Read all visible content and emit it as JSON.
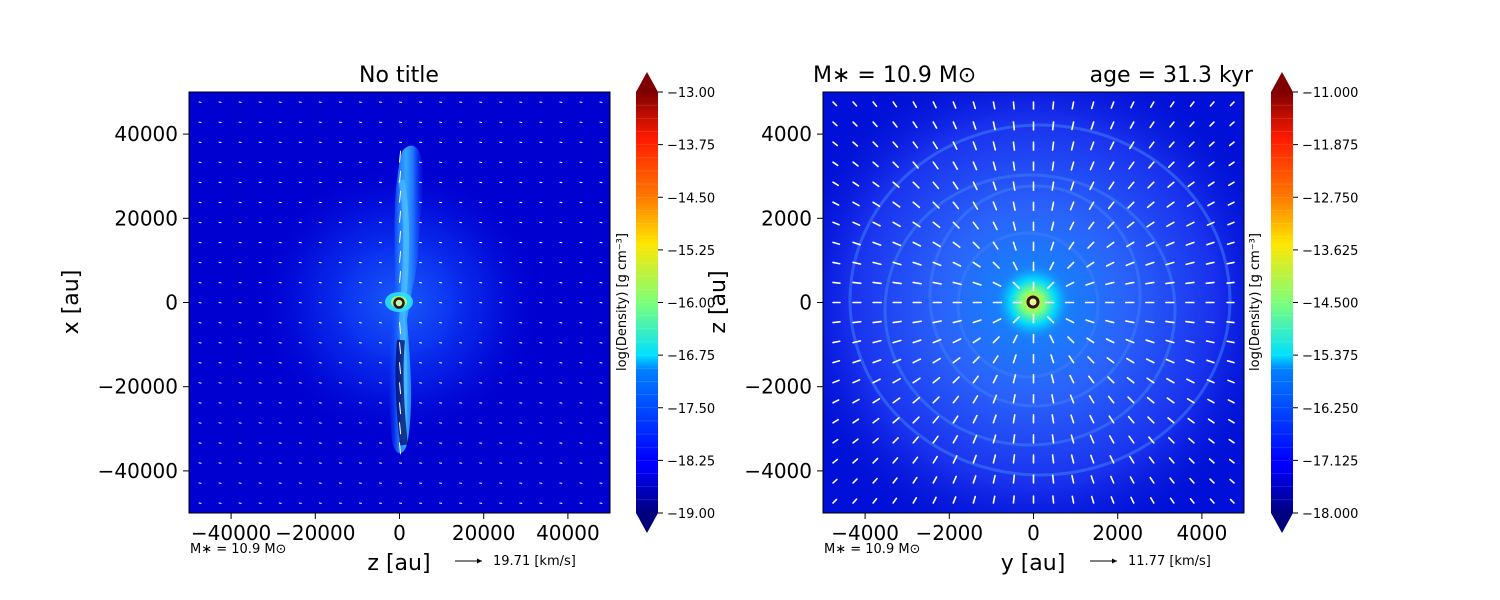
{
  "chart_data": [
    {
      "type": "heatmap",
      "title": "No title",
      "xlabel": "z [au]",
      "ylabel": "x [au]",
      "xlim": [
        -50000,
        50000
      ],
      "ylim": [
        -50000,
        50000
      ],
      "xticks": [
        "−40000",
        "−20000",
        "0",
        "20000",
        "40000"
      ],
      "xtick_values": [
        -40000,
        -20000,
        0,
        20000,
        40000
      ],
      "yticks": [
        "40000",
        "20000",
        "0",
        "−20000",
        "−40000"
      ],
      "ytick_values": [
        40000,
        20000,
        0,
        -20000,
        -40000
      ],
      "colorbar": {
        "label": "log(Density) [g cm⁻³]",
        "range": [
          -19.0,
          -13.0
        ],
        "ticks": [
          "−13.00",
          "−13.75",
          "−14.50",
          "−15.25",
          "−16.00",
          "−16.75",
          "−17.50",
          "−18.25",
          "−19.00"
        ],
        "tick_values": [
          -13.0,
          -13.75,
          -14.5,
          -15.25,
          -16.0,
          -16.75,
          -17.5,
          -18.25,
          -19.0
        ],
        "colormap": "jet",
        "extend": "both"
      },
      "annotation": "M∗ = 10.9 M⊙",
      "velocity_key": "19.71 [km/s]",
      "sink_marker": {
        "x": 0,
        "y": 0
      },
      "grid": false
    },
    {
      "type": "heatmap",
      "title_left": "M∗ = 10.9 M⊙",
      "title_right": "age = 31.3 kyr",
      "xlabel": "y [au]",
      "ylabel": "z [au]",
      "xlim": [
        -5000,
        5000
      ],
      "ylim": [
        -5000,
        5000
      ],
      "xticks": [
        "−4000",
        "−2000",
        "0",
        "2000",
        "4000"
      ],
      "xtick_values": [
        -4000,
        -2000,
        0,
        2000,
        4000
      ],
      "yticks": [
        "4000",
        "2000",
        "0",
        "−2000",
        "−4000"
      ],
      "ytick_values": [
        4000,
        2000,
        0,
        -2000,
        -4000
      ],
      "colorbar": {
        "label": "log(Density) [g cm⁻³]",
        "range": [
          -18.0,
          -11.0
        ],
        "ticks": [
          "−11.000",
          "−11.875",
          "−12.750",
          "−13.625",
          "−14.500",
          "−15.375",
          "−16.250",
          "−17.125",
          "−18.000"
        ],
        "tick_values": [
          -11.0,
          -11.875,
          -12.75,
          -13.625,
          -14.5,
          -15.375,
          -16.25,
          -17.125,
          -18.0
        ],
        "colormap": "jet",
        "extend": "both"
      },
      "annotation": "M∗ = 10.9 M⊙",
      "velocity_key": "11.77 [km/s]",
      "sink_marker": {
        "x": 0,
        "y": 0
      },
      "grid": false
    }
  ]
}
